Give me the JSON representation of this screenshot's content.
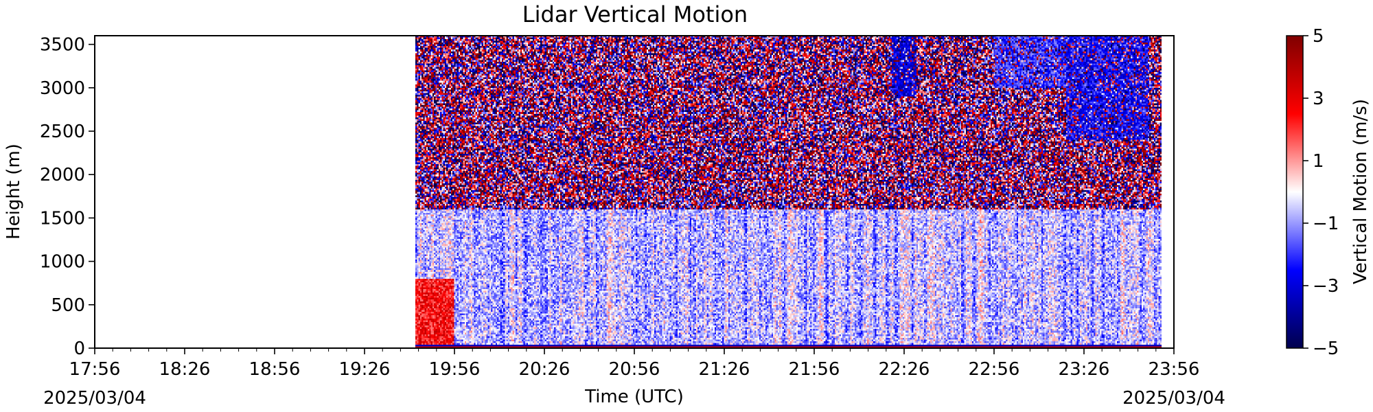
{
  "chart_data": {
    "type": "heatmap",
    "title": "Lidar Vertical Motion",
    "xlabel": "Time (UTC)",
    "ylabel": "Height (m)",
    "xlim": [
      "17:56",
      "23:56"
    ],
    "ylim": [
      0,
      3600
    ],
    "x_ticks": [
      "17:56",
      "18:26",
      "18:56",
      "19:26",
      "19:56",
      "20:26",
      "20:56",
      "21:26",
      "21:56",
      "22:26",
      "22:56",
      "23:26",
      "23:56"
    ],
    "y_ticks": [
      0,
      500,
      1000,
      1500,
      2000,
      2500,
      3000,
      3500
    ],
    "date_left": "2025/03/04",
    "date_right": "2025/03/04",
    "data_start": "19:43",
    "data_end": "23:52",
    "colorbar": {
      "label": "Vertical Motion (m/s)",
      "min": -5,
      "max": 5,
      "ticks": [
        "5",
        "3",
        "1",
        "−1",
        "−3",
        "−5"
      ],
      "tick_values": [
        5,
        3,
        1,
        -1,
        -3,
        -5
      ],
      "colormap": "seismic",
      "colors": [
        "#00004d",
        "#0000ff",
        "#ffffff",
        "#ff0000",
        "#800000"
      ]
    },
    "features": {
      "low_level_max_height": 1600,
      "updraft_region": {
        "start": "19:43",
        "end": "19:56",
        "max_height": 800,
        "mean_velocity": 2.5
      },
      "downdraft_patches": [
        {
          "start": "22:22",
          "end": "22:30",
          "min_height": 2900,
          "max_height": 3600,
          "mean_velocity": -3
        },
        {
          "start": "22:56",
          "end": "23:20",
          "min_height": 3000,
          "max_height": 3600,
          "mean_velocity": -2
        },
        {
          "start": "23:20",
          "end": "23:48",
          "min_height": 2400,
          "max_height": 3600,
          "mean_velocity": -2.5
        }
      ],
      "surface_band_height": 50
    }
  }
}
